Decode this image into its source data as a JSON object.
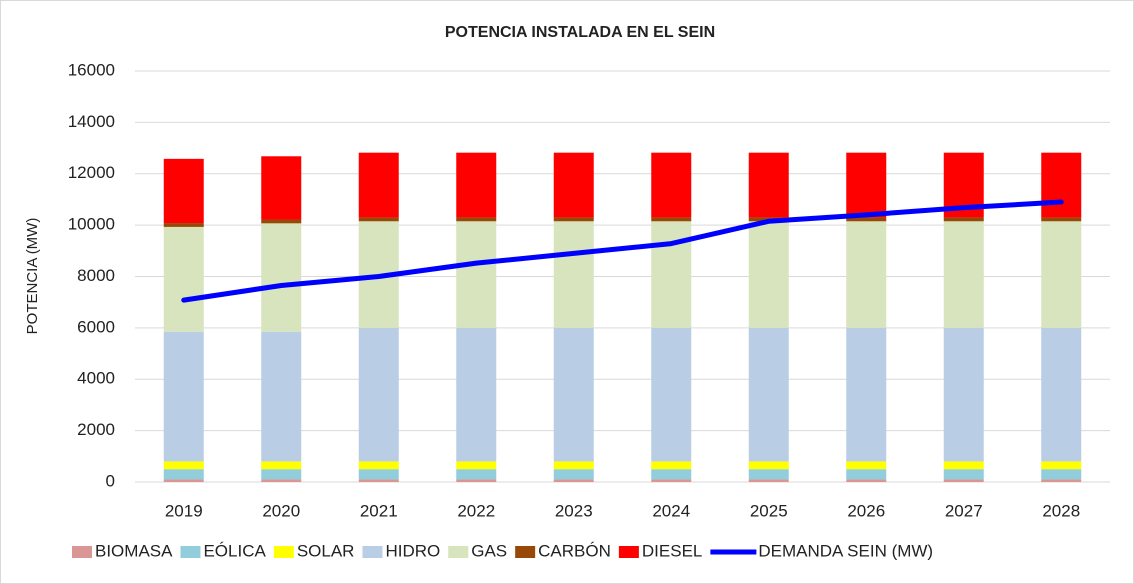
{
  "chart_data": {
    "type": "stacked_bar_line",
    "title": "POTENCIA INSTALADA EN EL SEIN",
    "ylabel": "POTENCIA (MW)",
    "categories": [
      "2019",
      "2020",
      "2021",
      "2022",
      "2023",
      "2024",
      "2025",
      "2026",
      "2027",
      "2028"
    ],
    "series": [
      {
        "name": "BIOMASA",
        "color": "#d99694",
        "values": [
          100,
          100,
          100,
          100,
          100,
          100,
          100,
          100,
          100,
          100
        ]
      },
      {
        "name": "EÓLICA",
        "color": "#92cddc",
        "values": [
          400,
          400,
          400,
          400,
          400,
          400,
          400,
          400,
          400,
          400
        ]
      },
      {
        "name": "SOLAR",
        "color": "#ffff00",
        "values": [
          300,
          300,
          300,
          300,
          300,
          300,
          300,
          300,
          300,
          300
        ]
      },
      {
        "name": "HIDRO",
        "color": "#b9cde5",
        "values": [
          5050,
          5050,
          5200,
          5200,
          5200,
          5200,
          5200,
          5200,
          5200,
          5200
        ]
      },
      {
        "name": "GAS",
        "color": "#d7e4bd",
        "values": [
          4080,
          4220,
          4150,
          4150,
          4150,
          4150,
          4150,
          4150,
          4150,
          4150
        ]
      },
      {
        "name": "CARBÓN",
        "color": "#984807",
        "values": [
          150,
          150,
          150,
          150,
          150,
          150,
          150,
          150,
          150,
          150
        ]
      },
      {
        "name": "DIESEL",
        "color": "#ff0000",
        "values": [
          2500,
          2460,
          2520,
          2520,
          2520,
          2520,
          2520,
          2520,
          2520,
          2520
        ]
      },
      {
        "name": "DEMANDA SEIN (MW)",
        "color": "#0000ff",
        "kind": "line",
        "values": [
          7080,
          7650,
          8000,
          8520,
          8900,
          9280,
          10150,
          10400,
          10680,
          10900
        ]
      }
    ],
    "ylim": [
      0,
      16000
    ],
    "yticks": [
      0,
      2000,
      4000,
      6000,
      8000,
      10000,
      12000,
      14000,
      16000
    ],
    "grid": true,
    "legend": "bottom"
  }
}
